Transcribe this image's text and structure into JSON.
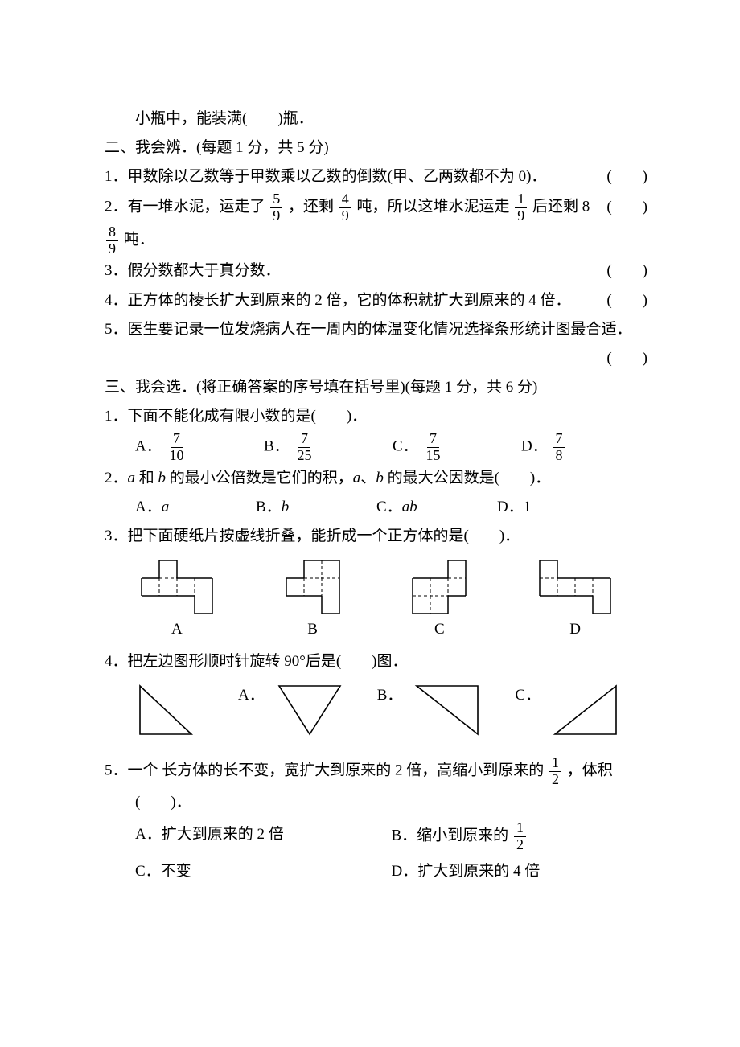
{
  "colors": {
    "text": "#000000",
    "bg": "#ffffff",
    "stroke": "#000000"
  },
  "font": {
    "family": "SimSun",
    "size_pt": 14,
    "line_height": 1.9
  },
  "intro_fragment": "小瓶中，能装满(　　)瓶．",
  "section2": {
    "heading": "二、我会辨．(每题 1 分，共 5 分)",
    "items": [
      {
        "text_left": "1．甲数除以乙数等于甲数乘以乙数的倒数(甲、乙两数都不为 0)．",
        "paren": "(　　)"
      },
      {
        "text_parts": [
          "2．有一堆水泥，运走了",
          "，还剩",
          "吨，所以这堆水泥运走",
          "后还剩 8",
          "吨．"
        ],
        "fracs": [
          {
            "num": "5",
            "den": "9"
          },
          {
            "num": "4",
            "den": "9"
          },
          {
            "num": "1",
            "den": "9"
          },
          {
            "num": "8",
            "den": "9"
          }
        ],
        "paren": "(　　)"
      },
      {
        "text_left": "3．假分数都大于真分数．",
        "paren": "(　　)"
      },
      {
        "text_left": "4．正方体的棱长扩大到原来的 2 倍，它的体积就扩大到原来的 4 倍．",
        "paren": "(　　)"
      },
      {
        "text_left": "5．医生要记录一位发烧病人在一周内的体温变化情况选择条形统计图最合适．",
        "paren": "(　　)"
      }
    ]
  },
  "section3": {
    "heading": "三、我会选．(将正确答案的序号填在括号里)(每题 1 分，共 6 分)",
    "q1": {
      "stem": "1．下面不能化成有限小数的是(　　)．",
      "options": {
        "A": {
          "label": "A．",
          "num": "7",
          "den": "10"
        },
        "B": {
          "label": "B．",
          "num": "7",
          "den": "25"
        },
        "C": {
          "label": "C．",
          "num": "7",
          "den": "15"
        },
        "D": {
          "label": "D．",
          "num": "7",
          "den": "8"
        }
      }
    },
    "q2": {
      "stem_parts": [
        "2．",
        " 和 ",
        " 的最小公倍数是它们的积，",
        "、",
        " 的最大公因数是(　　)．"
      ],
      "vars": {
        "a": "a",
        "b": "b",
        "ab": "ab"
      },
      "options": {
        "A": "A．",
        "B": "B．",
        "C": "C．",
        "D": "D．1"
      }
    },
    "q3": {
      "stem": "3．把下面硬纸片按虚线折叠，能折成一个正方体的是(　　)．",
      "labels": {
        "A": "A",
        "B": "B",
        "C": "C",
        "D": "D"
      },
      "nets": {
        "cell": 22,
        "stroke": "#000000",
        "A": {
          "solid": [
            [
              1,
              0
            ],
            [
              0,
              1
            ],
            [
              1,
              1
            ],
            [
              2,
              1
            ],
            [
              3,
              1
            ],
            [
              3,
              2
            ]
          ],
          "dash_h": [
            [
              1,
              1,
              2,
              1
            ]
          ],
          "dash_v": [
            [
              1,
              1,
              1,
              2
            ],
            [
              2,
              1,
              2,
              2
            ],
            [
              3,
              1,
              3,
              2
            ]
          ]
        },
        "B": {
          "solid": [
            [
              1,
              0
            ],
            [
              2,
              0
            ],
            [
              0,
              1
            ],
            [
              1,
              1
            ],
            [
              2,
              1
            ],
            [
              2,
              2
            ]
          ],
          "dash_h": [
            [
              1,
              1,
              3,
              1
            ]
          ],
          "dash_v": [
            [
              1,
              0,
              1,
              1
            ],
            [
              2,
              0,
              2,
              2
            ],
            [
              1,
              1,
              1,
              2
            ]
          ]
        },
        "C": {
          "solid": [
            [
              2,
              0
            ],
            [
              0,
              1
            ],
            [
              1,
              1
            ],
            [
              2,
              1
            ],
            [
              0,
              2
            ],
            [
              1,
              2
            ]
          ],
          "dash_h": [
            [
              0,
              2,
              2,
              2
            ],
            [
              2,
              1,
              3,
              1
            ]
          ],
          "dash_v": [
            [
              1,
              1,
              1,
              2
            ],
            [
              2,
              1,
              2,
              2
            ],
            [
              1,
              2,
              1,
              3
            ]
          ]
        },
        "D": {
          "solid": [
            [
              0,
              0
            ],
            [
              0,
              1
            ],
            [
              1,
              1
            ],
            [
              2,
              1
            ],
            [
              3,
              1
            ],
            [
              3,
              2
            ]
          ],
          "dash_h": [
            [
              0,
              1,
              1,
              1
            ]
          ],
          "dash_v": [
            [
              1,
              1,
              1,
              2
            ],
            [
              2,
              1,
              2,
              2
            ],
            [
              3,
              1,
              3,
              2
            ]
          ]
        }
      }
    },
    "q4": {
      "stem": "4．把左边图形顺时针旋转 90°后是(　　)图．",
      "labels": {
        "A": "A．",
        "B": "B．",
        "C": "C．"
      },
      "tris": {
        "w": 88,
        "h": 72,
        "stroke": "#000000",
        "sw": 1.6,
        "orig": [
          [
            6,
            6
          ],
          [
            6,
            66
          ],
          [
            70,
            66
          ]
        ],
        "A": [
          [
            6,
            6
          ],
          [
            82,
            6
          ],
          [
            44,
            66
          ]
        ],
        "B": [
          [
            6,
            6
          ],
          [
            82,
            6
          ],
          [
            82,
            66
          ]
        ],
        "C": [
          [
            6,
            66
          ],
          [
            82,
            66
          ],
          [
            82,
            6
          ]
        ]
      }
    },
    "q5": {
      "stem_parts": [
        "5．一个 长方体的长不变，宽扩大到原来的 2 倍，高缩小到原来的",
        "，体积"
      ],
      "frac": {
        "num": "1",
        "den": "2"
      },
      "blank_line": "(　　)．",
      "options": {
        "A": "A．扩大到原来的 2 倍",
        "B_pre": "B．缩小到原来的",
        "B_frac": {
          "num": "1",
          "den": "2"
        },
        "C": "C．不变",
        "D": "D．扩大到原来的 4 倍"
      }
    }
  }
}
